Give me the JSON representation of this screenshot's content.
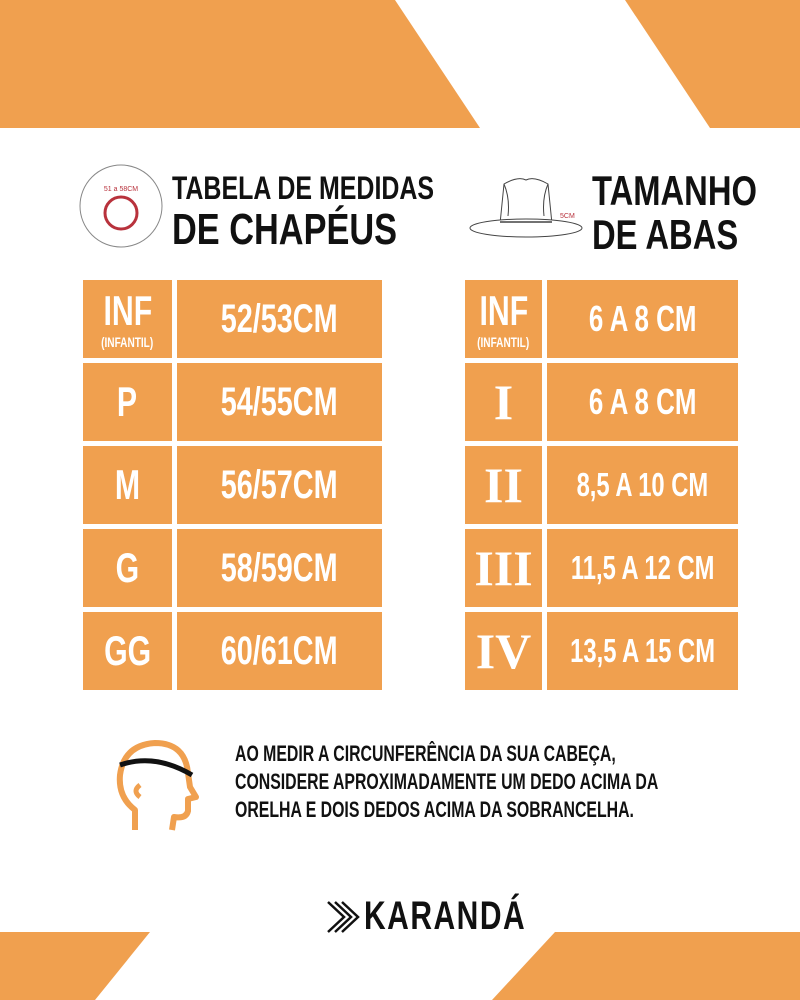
{
  "colors": {
    "accent": "#F0A04F",
    "text": "#111111",
    "measure": "#b8323c"
  },
  "left": {
    "title_line1": "TABELA DE MEDIDAS",
    "title_line2": "DE CHAPÉUS",
    "icon_label": "51 a 58CM",
    "rows": [
      {
        "size": "INF",
        "sub": "(INFANTIL)",
        "value": "52/53CM"
      },
      {
        "size": "P",
        "value": "54/55CM"
      },
      {
        "size": "M",
        "value": "56/57CM"
      },
      {
        "size": "G",
        "value": "58/59CM"
      },
      {
        "size": "GG",
        "value": "60/61CM"
      }
    ]
  },
  "right": {
    "title_line1": "TAMANHO",
    "title_line2": "DE ABAS",
    "icon_label": "5CM",
    "rows": [
      {
        "size": "INF",
        "sub": "(INFANTIL)",
        "value": "6 A 8 CM"
      },
      {
        "size": "I",
        "value": "6 A 8 CM"
      },
      {
        "size": "II",
        "value": "8,5 A 10 CM"
      },
      {
        "size": "III",
        "value": "11,5 A 12 CM"
      },
      {
        "size": "IV",
        "value": "13,5 A 15 CM"
      }
    ]
  },
  "note": {
    "line1": "AO MEDIR A CIRCUNFERÊNCIA DA SUA CABEÇA,",
    "line2": "CONSIDERE APROXIMADAMENTE UM DEDO ACIMA DA",
    "line3": "ORELHA E DOIS DEDOS ACIMA DA SOBRANCELHA."
  },
  "brand": {
    "name": "KARANDÁ"
  }
}
